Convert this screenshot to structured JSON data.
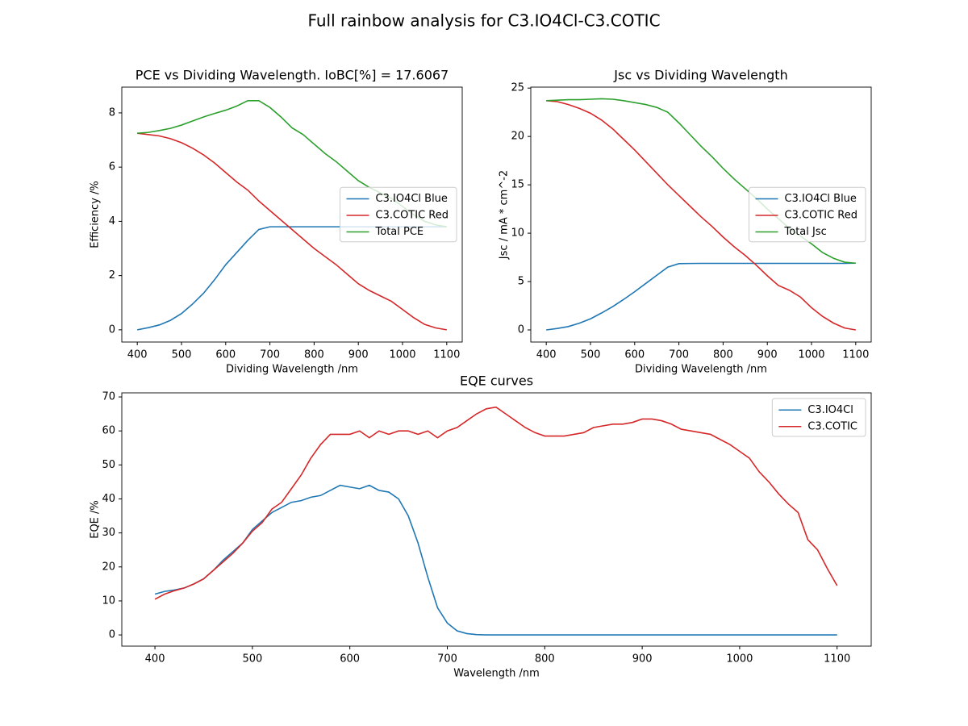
{
  "title": "Full rainbow analysis for C3.IO4Cl-C3.COTIC",
  "chart_data": [
    {
      "type": "line",
      "title": "PCE vs Dividing Wavelength. IoBC[%] = 17.6067",
      "xlabel": "Dividing Wavelength /nm",
      "ylabel": "Efficiency /%",
      "x": [
        400,
        425,
        450,
        475,
        500,
        525,
        550,
        575,
        600,
        625,
        650,
        675,
        700,
        725,
        750,
        775,
        800,
        825,
        850,
        875,
        900,
        925,
        950,
        975,
        1000,
        1025,
        1050,
        1075,
        1100
      ],
      "series": [
        {
          "name": "C3.IO4Cl Blue",
          "color": "#1f77b4",
          "values": [
            0,
            0.08,
            0.18,
            0.35,
            0.6,
            0.95,
            1.35,
            1.85,
            2.4,
            2.85,
            3.3,
            3.7,
            3.8,
            3.8,
            3.8,
            3.8,
            3.8,
            3.8,
            3.8,
            3.8,
            3.8,
            3.8,
            3.8,
            3.8,
            3.8,
            3.8,
            3.8,
            3.8,
            3.8
          ]
        },
        {
          "name": "C3.COTIC Red",
          "color": "#d62728",
          "values": [
            7.25,
            7.2,
            7.15,
            7.05,
            6.9,
            6.7,
            6.45,
            6.15,
            5.8,
            5.45,
            5.15,
            4.75,
            4.4,
            4.05,
            3.7,
            3.35,
            3.0,
            2.7,
            2.4,
            2.05,
            1.7,
            1.45,
            1.25,
            1.05,
            0.75,
            0.45,
            0.2,
            0.07,
            0
          ]
        },
        {
          "name": "Total PCE",
          "color": "#2ca02c",
          "values": [
            7.25,
            7.28,
            7.35,
            7.43,
            7.55,
            7.7,
            7.85,
            7.98,
            8.1,
            8.25,
            8.45,
            8.45,
            8.2,
            7.85,
            7.45,
            7.2,
            6.85,
            6.5,
            6.2,
            5.85,
            5.5,
            5.25,
            5.05,
            4.85,
            4.55,
            4.25,
            4.0,
            3.87,
            3.8
          ]
        }
      ],
      "xlim": [
        365,
        1135
      ],
      "ylim": [
        -0.45,
        8.95
      ],
      "xticks": [
        400,
        500,
        600,
        700,
        800,
        900,
        1000,
        1100
      ],
      "yticks": [
        0,
        2,
        4,
        6,
        8
      ],
      "legend": "center right"
    },
    {
      "type": "line",
      "title": "Jsc vs Dividing Wavelength",
      "xlabel": "Dividing Wavelength /nm",
      "ylabel": "Jsc / mA * cm^-2",
      "x": [
        400,
        425,
        450,
        475,
        500,
        525,
        550,
        575,
        600,
        625,
        650,
        675,
        700,
        725,
        750,
        775,
        800,
        825,
        850,
        875,
        900,
        925,
        950,
        975,
        1000,
        1025,
        1050,
        1075,
        1100
      ],
      "series": [
        {
          "name": "C3.IO4Cl Blue",
          "color": "#1f77b4",
          "values": [
            0,
            0.15,
            0.35,
            0.7,
            1.15,
            1.75,
            2.4,
            3.15,
            3.95,
            4.8,
            5.65,
            6.5,
            6.85,
            6.87,
            6.88,
            6.88,
            6.88,
            6.88,
            6.88,
            6.88,
            6.88,
            6.88,
            6.88,
            6.88,
            6.88,
            6.88,
            6.88,
            6.88,
            6.9
          ]
        },
        {
          "name": "C3.COTIC Red",
          "color": "#d62728",
          "values": [
            23.7,
            23.6,
            23.3,
            22.9,
            22.4,
            21.7,
            20.8,
            19.7,
            18.6,
            17.4,
            16.2,
            15.0,
            13.9,
            12.8,
            11.7,
            10.7,
            9.6,
            8.6,
            7.7,
            6.7,
            5.6,
            4.6,
            4.1,
            3.4,
            2.3,
            1.4,
            0.7,
            0.2,
            0
          ]
        },
        {
          "name": "Total Jsc",
          "color": "#2ca02c",
          "values": [
            23.7,
            23.75,
            23.8,
            23.8,
            23.85,
            23.9,
            23.85,
            23.7,
            23.5,
            23.3,
            23.0,
            22.5,
            21.4,
            20.2,
            19.0,
            17.9,
            16.7,
            15.6,
            14.6,
            13.6,
            12.5,
            11.5,
            10.5,
            9.7,
            8.9,
            8.0,
            7.4,
            7.0,
            6.9
          ]
        }
      ],
      "xlim": [
        365,
        1135
      ],
      "ylim": [
        -1.25,
        25.1
      ],
      "xticks": [
        400,
        500,
        600,
        700,
        800,
        900,
        1000,
        1100
      ],
      "yticks": [
        0,
        5,
        10,
        15,
        20,
        25
      ],
      "legend": "center right"
    },
    {
      "type": "line",
      "title": "EQE curves",
      "xlabel": "Wavelength /nm",
      "ylabel": "EQE /%",
      "x": [
        400,
        410,
        420,
        430,
        440,
        450,
        460,
        470,
        480,
        490,
        500,
        510,
        520,
        530,
        540,
        550,
        560,
        570,
        580,
        590,
        600,
        610,
        620,
        630,
        640,
        650,
        660,
        670,
        680,
        690,
        700,
        710,
        720,
        730,
        740,
        750,
        760,
        770,
        780,
        790,
        800,
        810,
        820,
        830,
        840,
        850,
        860,
        870,
        880,
        890,
        900,
        910,
        920,
        930,
        940,
        950,
        960,
        970,
        980,
        990,
        1000,
        1010,
        1020,
        1030,
        1040,
        1050,
        1060,
        1070,
        1080,
        1090,
        1100
      ],
      "series": [
        {
          "name": "C3.IO4Cl",
          "color": "#1f77b4",
          "values": [
            12,
            12.8,
            13.2,
            13.8,
            15,
            16.5,
            19,
            22,
            24.5,
            27,
            31,
            33.5,
            36,
            37.5,
            39,
            39.5,
            40.5,
            41,
            42.5,
            44,
            43.5,
            43,
            44,
            42.5,
            42,
            40,
            35,
            27,
            17,
            8,
            3.5,
            1.2,
            0.4,
            0.1,
            0,
            0,
            0,
            0,
            0,
            0,
            0,
            0,
            0,
            0,
            0,
            0,
            0,
            0,
            0,
            0,
            0,
            0,
            0,
            0,
            0,
            0,
            0,
            0,
            0,
            0,
            0,
            0,
            0,
            0,
            0,
            0,
            0,
            0,
            0,
            0,
            0
          ]
        },
        {
          "name": "C3.COTIC",
          "color": "#d62728",
          "values": [
            10.5,
            12,
            13,
            13.8,
            15,
            16.5,
            19,
            21.5,
            24,
            27,
            30.5,
            33,
            37,
            39,
            43,
            47,
            52,
            56,
            59,
            59,
            59,
            60,
            58,
            60,
            59,
            60,
            60,
            59,
            60,
            58,
            60,
            61,
            63,
            65,
            66.5,
            67,
            65,
            63,
            61,
            59.5,
            58.5,
            58.5,
            58.5,
            59,
            59.5,
            61,
            61.5,
            62,
            62,
            62.5,
            63.5,
            63.5,
            63,
            62,
            60.5,
            60,
            59.5,
            59,
            57.5,
            56,
            54,
            52,
            48,
            45,
            41.5,
            38.5,
            36,
            28,
            25,
            19.5,
            14.5
          ]
        }
      ],
      "xlim": [
        366,
        1135
      ],
      "ylim": [
        -3.3,
        71.2
      ],
      "xticks": [
        400,
        500,
        600,
        700,
        800,
        900,
        1000,
        1100
      ],
      "yticks": [
        0,
        10,
        20,
        30,
        40,
        50,
        60,
        70
      ],
      "legend": "upper right"
    }
  ]
}
